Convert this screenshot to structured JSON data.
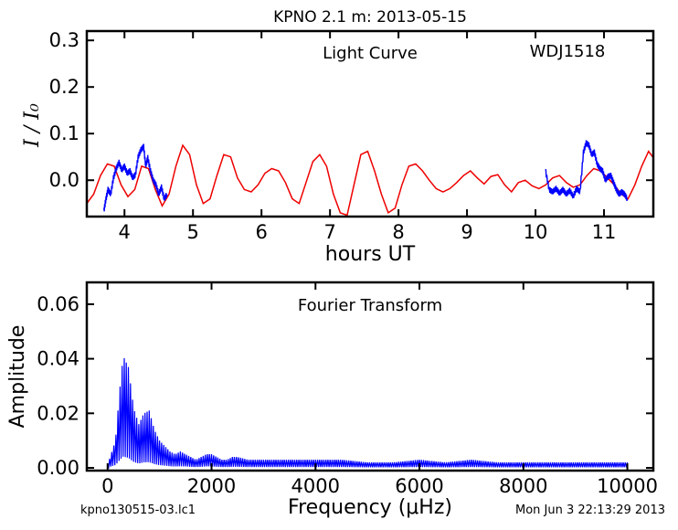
{
  "figure": {
    "title": "KPNO 2.1 m:  2013-05-15",
    "footer_left": "kpno130515-03.lc1",
    "footer_right": "Mon Jun  3 22:13:29 2013"
  },
  "chart_data": [
    {
      "type": "line",
      "panel_label": "Light Curve",
      "object_label": "WDJ1518",
      "xlabel": "hours UT",
      "ylabel": "I / I₀",
      "xlim": [
        3.45,
        11.72
      ],
      "ylim": [
        -0.078,
        0.32
      ],
      "x_ticks": [
        4,
        5,
        6,
        7,
        8,
        9,
        10,
        11
      ],
      "y_ticks": [
        0.0,
        0.1,
        0.2,
        0.3
      ],
      "y_tick_labels": [
        "0.0",
        "0.1",
        "0.2",
        "0.3"
      ],
      "series": [
        {
          "color": "#0000ff",
          "style": "data",
          "segments": [
            {
              "x": [
                3.7,
                3.73,
                3.76,
                3.8,
                3.84,
                3.88,
                3.92,
                3.96,
                4.0,
                4.04,
                4.08,
                4.12,
                4.16,
                4.2,
                4.24,
                4.28,
                4.31,
                4.34,
                4.38,
                4.42,
                4.46,
                4.5,
                4.54,
                4.58,
                4.62
              ],
              "y": [
                -0.065,
                -0.04,
                -0.02,
                -0.03,
                0.005,
                0.025,
                0.038,
                0.022,
                0.03,
                0.015,
                0.02,
                0.005,
                0.012,
                0.05,
                0.065,
                0.072,
                0.03,
                0.048,
                0.02,
                0.0,
                -0.01,
                -0.03,
                -0.015,
                -0.04,
                -0.03
              ]
            },
            {
              "x": [
                10.15,
                10.2,
                10.25,
                10.3,
                10.35,
                10.4,
                10.45,
                10.5,
                10.55,
                10.6,
                10.65,
                10.7,
                10.74,
                10.78,
                10.82,
                10.86,
                10.9,
                10.94,
                10.98,
                11.02,
                11.06,
                11.1,
                11.14,
                11.18,
                11.22,
                11.26,
                11.3,
                11.34
              ],
              "y": [
                0.018,
                -0.02,
                -0.025,
                -0.018,
                -0.028,
                -0.02,
                -0.03,
                -0.022,
                -0.035,
                -0.018,
                -0.025,
                0.06,
                0.08,
                0.075,
                0.055,
                0.06,
                0.035,
                0.025,
                0.02,
                0.0,
                0.008,
                0.01,
                -0.005,
                -0.02,
                -0.03,
                -0.025,
                -0.03,
                -0.04
              ]
            }
          ]
        },
        {
          "color": "#ee0000",
          "style": "model",
          "x": [
            3.45,
            3.55,
            3.65,
            3.75,
            3.85,
            3.95,
            4.05,
            4.15,
            4.25,
            4.35,
            4.45,
            4.55,
            4.65,
            4.75,
            4.85,
            4.95,
            5.05,
            5.15,
            5.25,
            5.35,
            5.45,
            5.55,
            5.65,
            5.75,
            5.85,
            5.95,
            6.05,
            6.15,
            6.25,
            6.35,
            6.45,
            6.55,
            6.65,
            6.75,
            6.85,
            6.95,
            7.05,
            7.15,
            7.25,
            7.35,
            7.45,
            7.55,
            7.65,
            7.75,
            7.85,
            7.95,
            8.05,
            8.15,
            8.25,
            8.35,
            8.45,
            8.55,
            8.65,
            8.75,
            8.85,
            8.95,
            9.05,
            9.15,
            9.25,
            9.35,
            9.45,
            9.55,
            9.65,
            9.75,
            9.85,
            9.95,
            10.05,
            10.15,
            10.25,
            10.35,
            10.45,
            10.55,
            10.65,
            10.75,
            10.85,
            10.95,
            11.05,
            11.15,
            11.25,
            11.35,
            11.45,
            11.55,
            11.65,
            11.72
          ],
          "y": [
            -0.05,
            -0.03,
            0.01,
            0.035,
            0.03,
            -0.01,
            -0.035,
            -0.02,
            0.03,
            0.025,
            -0.02,
            -0.055,
            -0.03,
            0.03,
            0.075,
            0.055,
            -0.01,
            -0.05,
            -0.04,
            0.01,
            0.055,
            0.05,
            0.005,
            -0.02,
            -0.025,
            -0.01,
            0.015,
            0.025,
            0.02,
            -0.005,
            -0.04,
            -0.05,
            -0.005,
            0.04,
            0.055,
            0.03,
            -0.03,
            -0.07,
            -0.075,
            -0.01,
            0.055,
            0.062,
            0.02,
            -0.03,
            -0.07,
            -0.06,
            -0.01,
            0.03,
            0.035,
            0.02,
            0.0,
            -0.018,
            -0.025,
            -0.018,
            -0.005,
            0.01,
            0.02,
            0.005,
            -0.008,
            0.008,
            0.012,
            -0.01,
            -0.025,
            -0.005,
            0.0,
            -0.012,
            -0.018,
            -0.01,
            0.005,
            0.01,
            -0.005,
            -0.015,
            -0.01,
            0.01,
            0.025,
            0.02,
            0.005,
            -0.01,
            -0.03,
            -0.04,
            -0.01,
            0.03,
            0.062,
            0.048
          ]
        }
      ]
    },
    {
      "type": "line",
      "panel_label": "Fourier Transform",
      "xlabel": "Frequency (μHz)",
      "ylabel": "Amplitude",
      "xlim": [
        -400,
        10500
      ],
      "ylim": [
        -0.001,
        0.068
      ],
      "x_ticks": [
        0,
        2000,
        4000,
        6000,
        8000,
        10000
      ],
      "y_ticks": [
        0.0,
        0.02,
        0.04,
        0.06
      ],
      "y_tick_labels": [
        "0.00",
        "0.02",
        "0.04",
        "0.06"
      ],
      "envelope": {
        "x": [
          0,
          150,
          250,
          300,
          400,
          500,
          600,
          700,
          800,
          900,
          1000,
          1100,
          1200,
          1300,
          1400,
          1500,
          1600,
          1700,
          1800,
          1900,
          2000,
          2100,
          2200,
          2300,
          2400,
          2500,
          2700,
          3000,
          3500,
          4000,
          4500,
          5000,
          5500,
          6000,
          6500,
          7000,
          7500,
          8000,
          8500,
          9000,
          9500,
          10000
        ],
        "y": [
          0.001,
          0.01,
          0.032,
          0.041,
          0.037,
          0.022,
          0.016,
          0.02,
          0.021,
          0.014,
          0.01,
          0.008,
          0.006,
          0.005,
          0.006,
          0.005,
          0.004,
          0.003,
          0.004,
          0.005,
          0.005,
          0.004,
          0.003,
          0.003,
          0.004,
          0.004,
          0.003,
          0.003,
          0.003,
          0.003,
          0.003,
          0.002,
          0.002,
          0.003,
          0.002,
          0.003,
          0.002,
          0.002,
          0.002,
          0.002,
          0.002,
          0.002
        ]
      },
      "series": [
        {
          "color": "#0000ff"
        }
      ]
    }
  ]
}
